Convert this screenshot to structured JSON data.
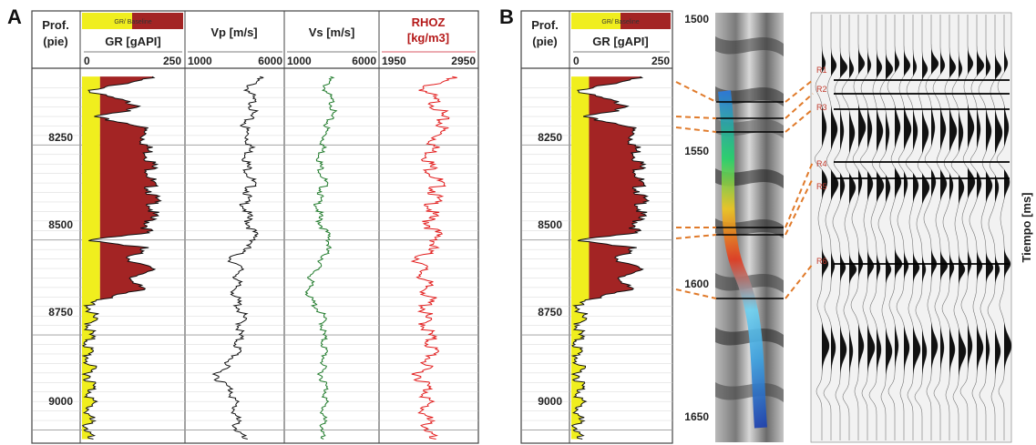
{
  "panel_a": {
    "letter": "A",
    "depth_header_line1": "Prof.",
    "depth_header_line2": "(pie)",
    "gr_legend": "GR/ Baseline",
    "gr_title": "GR [gAPI]",
    "gr_range": [
      "0",
      "250"
    ],
    "vp_title": "Vp [m/s]",
    "vp_range": [
      "1000",
      "6000"
    ],
    "vs_title": "Vs [m/s]",
    "vs_range": [
      "1000",
      "6000"
    ],
    "rhoz_title_line1": "RHOZ",
    "rhoz_title_line2": "[kg/m3]",
    "rhoz_range": [
      "1950",
      "2950"
    ],
    "depth_ticks": [
      "8250",
      "8500",
      "8750",
      "9000"
    ]
  },
  "panel_b": {
    "letter": "B",
    "depth_header_line1": "Prof.",
    "depth_header_line2": "(pie)",
    "gr_legend": "GR/ Baseline",
    "gr_title": "GR [gAPI]",
    "gr_range": [
      "0",
      "250"
    ],
    "depth_ticks": [
      "8250",
      "8500",
      "8750",
      "9000"
    ],
    "time_ticks": [
      "1500",
      "1550",
      "1600",
      "1650"
    ],
    "time_axis_label": "Tiempo [ms]",
    "reflectors": [
      "R1",
      "R2",
      "R3",
      "R4",
      "R5",
      "R6"
    ]
  },
  "colors": {
    "gr_sand": "#f0ee1e",
    "gr_shale": "#a32424",
    "vp_curve": "#111111",
    "vs_curve": "#1f7a2a",
    "rhoz_curve": "#e21b1b",
    "correlation": "#e07a2a",
    "reflector_label": "#c0392b"
  },
  "chart_data": [
    {
      "type": "line",
      "title": "",
      "panel": "A",
      "ylabel": "Prof. (pie)",
      "ylim": [
        9030,
        8060
      ],
      "tracks": [
        {
          "name": "GR [gAPI]",
          "xlim": [
            0,
            250
          ],
          "baseline": 45,
          "depth": [
            8070,
            8110,
            8150,
            8175,
            8200,
            8250,
            8300,
            8350,
            8400,
            8450,
            8480,
            8500,
            8520,
            8550,
            8580,
            8610,
            8630,
            8660,
            8700,
            8750,
            8800,
            8850,
            8900,
            8950,
            9000,
            9030
          ],
          "values": [
            175,
            15,
            160,
            20,
            150,
            160,
            175,
            170,
            180,
            170,
            160,
            20,
            150,
            120,
            175,
            110,
            165,
            20,
            25,
            18,
            15,
            20,
            25,
            18,
            15,
            12
          ]
        },
        {
          "name": "Vp [m/s]",
          "xlim": [
            1000,
            6000
          ],
          "depth": [
            8070,
            8100,
            8150,
            8200,
            8250,
            8300,
            8350,
            8400,
            8450,
            8500,
            8550,
            8580,
            8600,
            8650,
            8700,
            8750,
            8800,
            8850,
            8870,
            8900,
            8950,
            9000,
            9030
          ],
          "values": [
            4800,
            4200,
            4500,
            4000,
            4300,
            4100,
            4400,
            4000,
            4200,
            4600,
            3300,
            3800,
            3600,
            3500,
            3900,
            3700,
            3600,
            2600,
            2700,
            3400,
            3500,
            3600,
            4000
          ]
        },
        {
          "name": "Vs [m/s]",
          "xlim": [
            1000,
            6000
          ],
          "depth": [
            8070,
            8100,
            8150,
            8200,
            8250,
            8300,
            8350,
            8400,
            8450,
            8500,
            8550,
            8600,
            8650,
            8700,
            8750,
            8800,
            8850,
            8900,
            8950,
            9000,
            9030
          ],
          "values": [
            3400,
            3100,
            3600,
            3200,
            3000,
            2800,
            3100,
            2700,
            2800,
            3400,
            3000,
            2300,
            2200,
            3000,
            3000,
            3100,
            2900,
            3200,
            3000,
            3000,
            2800
          ]
        },
        {
          "name": "RHOZ [kg/m3]",
          "xlim": [
            1950,
            2950
          ],
          "depth": [
            8070,
            8100,
            8150,
            8200,
            8250,
            8300,
            8350,
            8400,
            8450,
            8500,
            8550,
            8600,
            8650,
            8700,
            8750,
            8800,
            8850,
            8900,
            8950,
            9000,
            9030
          ],
          "values": [
            2700,
            2400,
            2550,
            2600,
            2500,
            2450,
            2550,
            2500,
            2450,
            2550,
            2350,
            2400,
            2450,
            2400,
            2450,
            2500,
            2350,
            2450,
            2400,
            2450,
            2450
          ]
        }
      ]
    },
    {
      "type": "line",
      "title": "",
      "panel": "B",
      "ylabel": "Tiempo [ms]",
      "ylim": [
        1650,
        1500
      ],
      "tracks": [
        {
          "name": "GR [gAPI]",
          "xlim": [
            0,
            250
          ],
          "baseline": 45,
          "depth": [
            8070,
            8110,
            8150,
            8175,
            8200,
            8250,
            8300,
            8350,
            8400,
            8450,
            8480,
            8500,
            8520,
            8550,
            8580,
            8610,
            8630,
            8660,
            8700,
            8750,
            8800,
            8850,
            8900,
            8950,
            9000,
            9030
          ],
          "values": [
            175,
            15,
            160,
            20,
            150,
            160,
            175,
            170,
            180,
            170,
            160,
            20,
            150,
            120,
            175,
            110,
            165,
            20,
            25,
            18,
            15,
            20,
            25,
            18,
            15,
            12
          ]
        }
      ]
    }
  ]
}
